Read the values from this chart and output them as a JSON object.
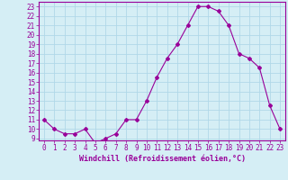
{
  "x": [
    0,
    1,
    2,
    3,
    4,
    5,
    6,
    7,
    8,
    9,
    10,
    11,
    12,
    13,
    14,
    15,
    16,
    17,
    18,
    19,
    20,
    21,
    22,
    23
  ],
  "y": [
    11,
    10,
    9.5,
    9.5,
    10,
    8.5,
    9,
    9.5,
    11,
    11,
    13,
    15.5,
    17.5,
    19,
    21,
    23,
    23,
    22.5,
    21,
    18,
    17.5,
    16.5,
    12.5,
    10
  ],
  "line_color": "#990099",
  "marker": "D",
  "marker_size": 2.0,
  "bg_color": "#d5eef5",
  "grid_color": "#b0d8e8",
  "xlabel": "Windchill (Refroidissement éolien,°C)",
  "ylabel_ticks": [
    9,
    10,
    11,
    12,
    13,
    14,
    15,
    16,
    17,
    18,
    19,
    20,
    21,
    22,
    23
  ],
  "ylim": [
    8.8,
    23.5
  ],
  "xlim": [
    -0.5,
    23.5
  ],
  "tick_color": "#990099",
  "tick_fontsize": 5.5,
  "xlabel_fontsize": 6.0
}
